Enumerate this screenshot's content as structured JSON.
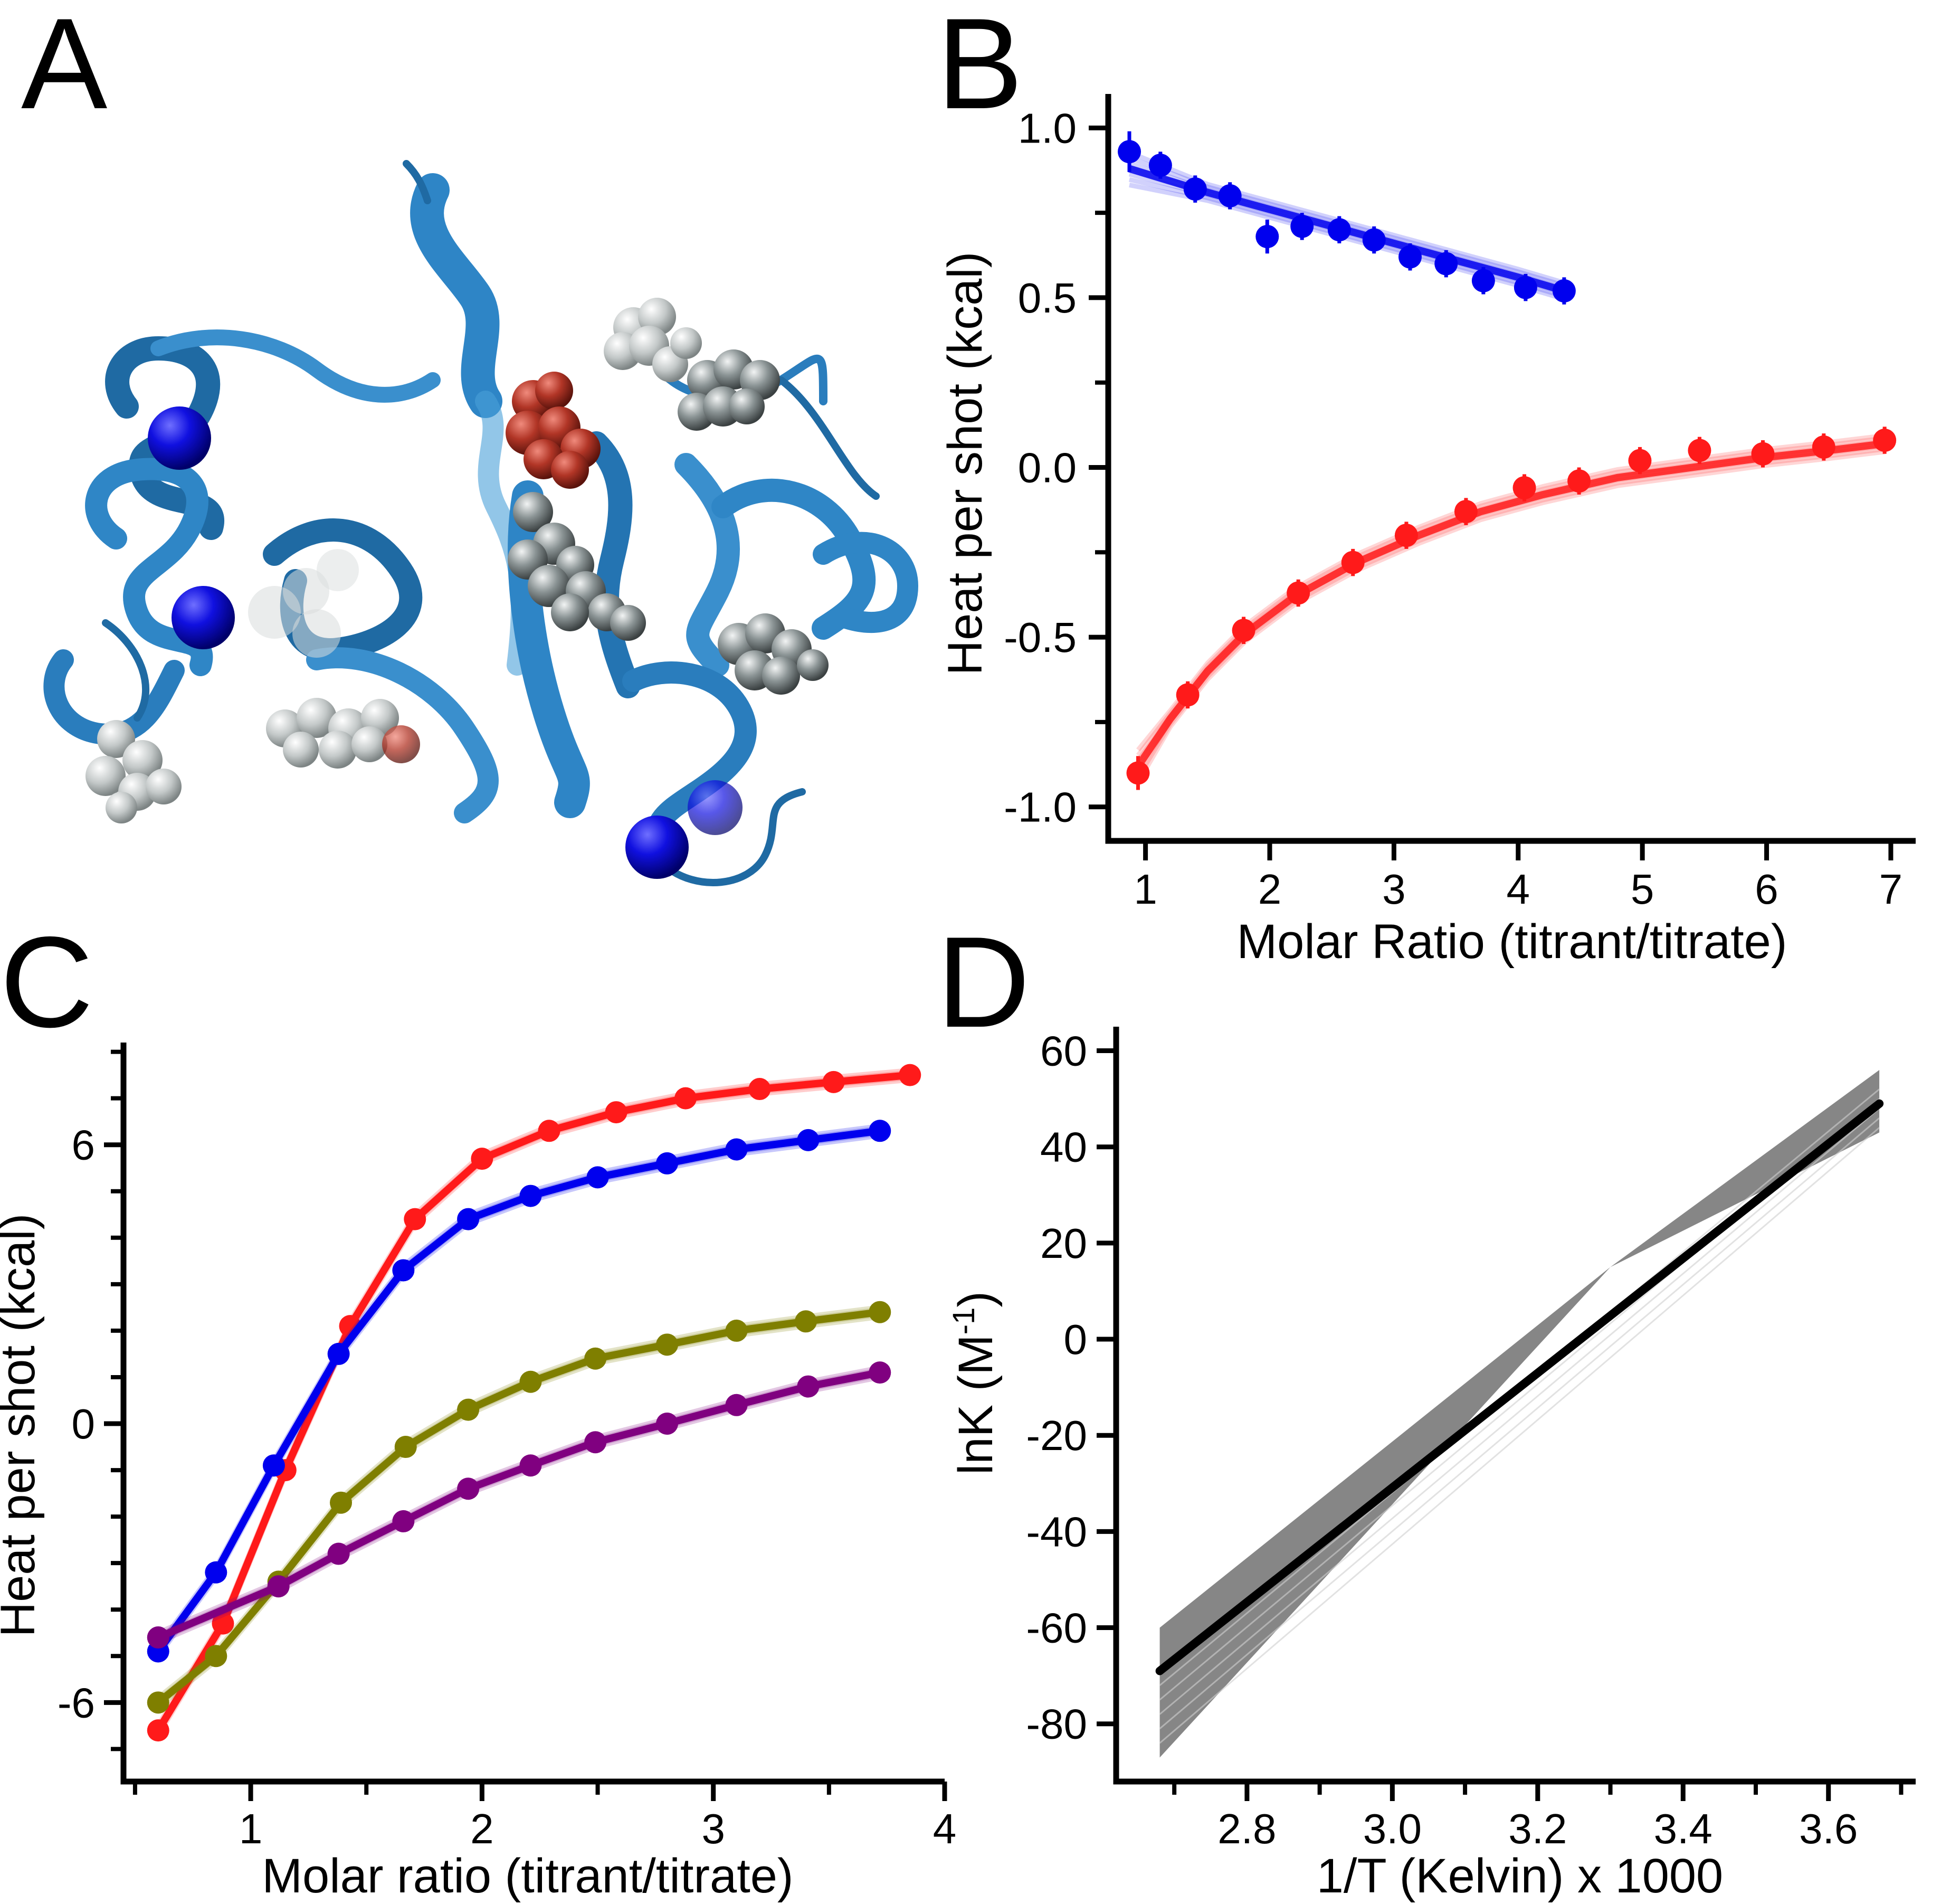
{
  "panel_labels": [
    "A",
    "B",
    "C",
    "D"
  ],
  "colors": {
    "blue": "#0000ee",
    "red": "#ff1a1a",
    "olive": "#7f7f00",
    "purple": "#800080",
    "black": "#000000",
    "gray_band": "#808080",
    "protein_ribbon": "#2f7fbf",
    "ligand_gray": "#8c9596",
    "ligand_red": "#b33a2b",
    "ion_blue": "#0000cc"
  },
  "panel_a": {
    "description": "",
    "elements": [
      "protein-ribbon",
      "blue-ion-spheres",
      "gray-ligand-spheres",
      "red-ligand-spheres"
    ]
  },
  "chart_data": [
    {
      "panel": "B",
      "type": "scatter",
      "xlabel": "Molar Ratio (titrant/titrate)",
      "ylabel": "Heat per shot (kcal)",
      "xlim": [
        0.7,
        7.2
      ],
      "ylim": [
        -1.1,
        1.1
      ],
      "xticks": [
        1,
        2,
        3,
        4,
        5,
        6,
        7
      ],
      "yticks": [
        -1.0,
        -0.5,
        0.0,
        0.5,
        1.0
      ],
      "ytick_labels": [
        "-1.0",
        "-0.5",
        "0.0",
        "0.5",
        "1.0"
      ],
      "grid": false,
      "series": [
        {
          "color": "blue",
          "x": [
            0.87,
            1.12,
            1.4,
            1.68,
            1.98,
            2.26,
            2.56,
            2.84,
            3.13,
            3.42,
            3.72,
            4.06,
            4.37
          ],
          "y": [
            0.93,
            0.89,
            0.82,
            0.8,
            0.68,
            0.71,
            0.7,
            0.67,
            0.62,
            0.6,
            0.55,
            0.53,
            0.52
          ],
          "err": [
            0.06,
            0.04,
            0.04,
            0.04,
            0.05,
            0.04,
            0.04,
            0.04,
            0.04,
            0.04,
            0.04,
            0.04,
            0.04
          ],
          "fit_x": [
            0.87,
            1.5,
            2.0,
            2.5,
            3.0,
            3.5,
            4.0,
            4.37
          ],
          "fit_y": [
            0.88,
            0.81,
            0.76,
            0.71,
            0.66,
            0.61,
            0.56,
            0.52
          ]
        },
        {
          "color": "red",
          "x": [
            0.94,
            1.34,
            1.79,
            2.23,
            2.67,
            3.1,
            3.58,
            4.05,
            4.49,
            4.98,
            5.46,
            5.97,
            6.46,
            6.95
          ],
          "y": [
            -0.9,
            -0.67,
            -0.48,
            -0.37,
            -0.28,
            -0.2,
            -0.13,
            -0.06,
            -0.04,
            0.02,
            0.05,
            0.04,
            0.06,
            0.08
          ],
          "err": [
            0.05,
            0.04,
            0.04,
            0.04,
            0.04,
            0.04,
            0.04,
            0.04,
            0.04,
            0.04,
            0.04,
            0.04,
            0.04,
            0.04
          ],
          "fit_x": [
            0.94,
            1.2,
            1.5,
            1.8,
            2.2,
            2.7,
            3.2,
            3.7,
            4.2,
            4.8,
            5.4,
            6.0,
            6.5,
            6.95
          ],
          "fit_y": [
            -0.88,
            -0.74,
            -0.6,
            -0.49,
            -0.38,
            -0.28,
            -0.2,
            -0.13,
            -0.08,
            -0.03,
            0.0,
            0.03,
            0.05,
            0.07
          ]
        }
      ]
    },
    {
      "panel": "C",
      "type": "line",
      "xlabel": "Molar ratio (titrant/titrate)",
      "ylabel": "Heat per shot (kcal)",
      "xlim": [
        0.45,
        4.0
      ],
      "ylim": [
        -7.7,
        8.2
      ],
      "xticks": [
        1,
        2,
        3,
        4
      ],
      "yticks": [
        -6,
        0,
        6
      ],
      "grid": false,
      "series": [
        {
          "color": "red",
          "x": [
            0.6,
            0.88,
            1.15,
            1.43,
            1.71,
            2.0,
            2.29,
            2.58,
            2.88,
            3.2,
            3.52,
            3.85
          ],
          "y": [
            -6.6,
            -4.3,
            -1.0,
            2.1,
            4.4,
            5.7,
            6.3,
            6.7,
            7.0,
            7.2,
            7.35,
            7.5
          ]
        },
        {
          "color": "blue",
          "x": [
            0.6,
            0.85,
            1.1,
            1.38,
            1.66,
            1.94,
            2.21,
            2.5,
            2.8,
            3.1,
            3.41,
            3.72
          ],
          "y": [
            -4.9,
            -3.2,
            -0.9,
            1.5,
            3.3,
            4.4,
            4.9,
            5.3,
            5.6,
            5.9,
            6.1,
            6.3
          ]
        },
        {
          "color": "olive",
          "x": [
            0.6,
            0.85,
            1.12,
            1.39,
            1.67,
            1.94,
            2.21,
            2.49,
            2.8,
            3.1,
            3.4,
            3.72
          ],
          "y": [
            -6.0,
            -5.0,
            -3.4,
            -1.7,
            -0.5,
            0.3,
            0.9,
            1.4,
            1.7,
            2.0,
            2.2,
            2.4
          ]
        },
        {
          "color": "purple",
          "x": [
            0.6,
            1.12,
            1.38,
            1.66,
            1.94,
            2.21,
            2.49,
            2.8,
            3.1,
            3.41,
            3.72
          ],
          "y": [
            -4.6,
            -3.5,
            -2.8,
            -2.1,
            -1.4,
            -0.9,
            -0.4,
            0.0,
            0.4,
            0.8,
            1.1
          ]
        }
      ]
    },
    {
      "panel": "D",
      "type": "line",
      "xlabel": "1/T (Kelvin) x 1000",
      "ylabel_main": "lnK (M",
      "ylabel_sup": "-1",
      "ylabel_end": ")",
      "xlim": [
        2.62,
        3.72
      ],
      "ylim": [
        -92,
        65
      ],
      "xticks": [
        2.8,
        3.0,
        3.2,
        3.4,
        3.6
      ],
      "xtick_labels": [
        "2.8",
        "3.0",
        "3.2",
        "3.4",
        "3.6"
      ],
      "yticks": [
        -80,
        -60,
        -40,
        -20,
        0,
        20,
        40,
        60
      ],
      "grid": false,
      "fit_line": {
        "x": [
          2.68,
          3.67
        ],
        "y": [
          -69,
          49
        ]
      },
      "band": {
        "x": [
          2.68,
          3.3,
          3.67
        ],
        "upper": [
          -60,
          15,
          56
        ],
        "lower": [
          -87,
          15,
          43
        ]
      }
    }
  ]
}
